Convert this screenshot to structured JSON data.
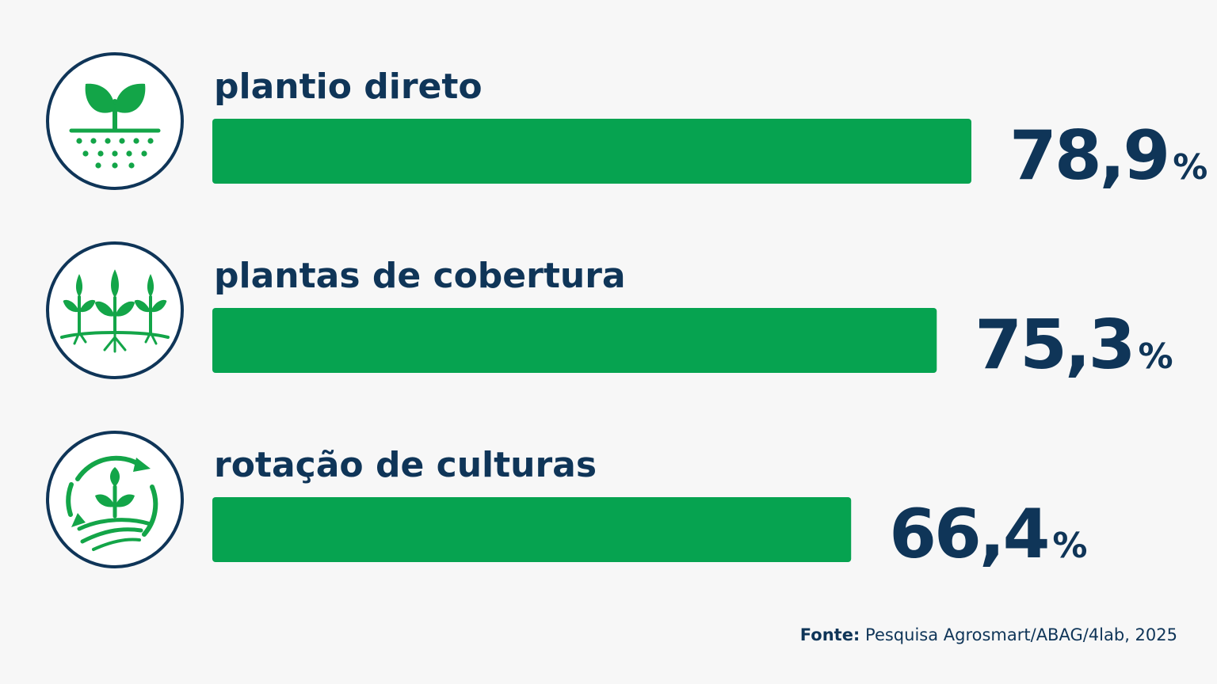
{
  "colors": {
    "background": "#f7f7f7",
    "bar": "#06a350",
    "text": "#0f3558",
    "icon": "#13a548",
    "circle": "#0f3558"
  },
  "chart_data": {
    "type": "bar",
    "orientation": "horizontal",
    "unit": "%",
    "xlim": [
      0,
      100
    ],
    "grid": false,
    "categories": [
      "plantio direto",
      "plantas de cobertura",
      "rotação de culturas"
    ],
    "values": [
      78.9,
      75.3,
      66.4
    ],
    "value_labels": [
      "78,9",
      "75,3",
      "66,4"
    ],
    "icons": [
      "sprouting-seed-soil-icon",
      "cover-crop-plants-icon",
      "crop-rotation-cycle-icon"
    ]
  },
  "source": {
    "label": "Fonte:",
    "text": "Pesquisa Agrosmart/ABAG/4lab, 2025"
  }
}
